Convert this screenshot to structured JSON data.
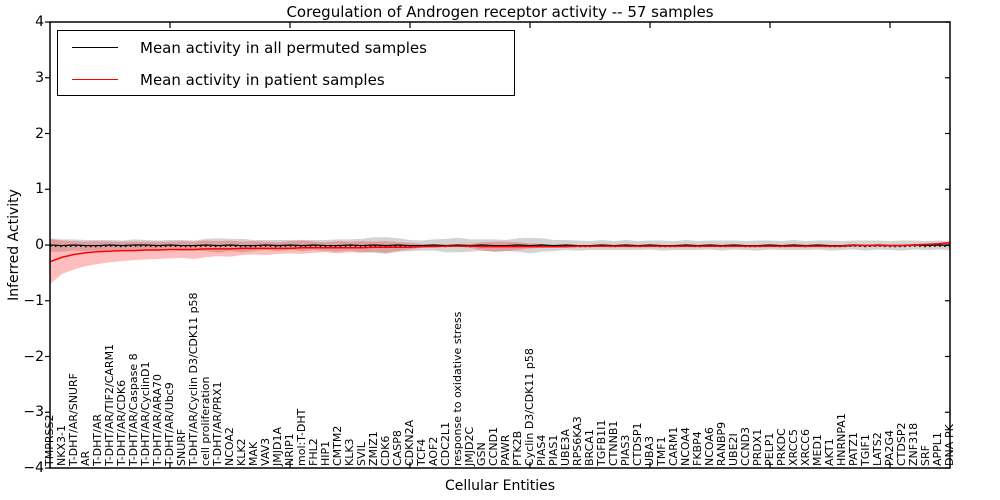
{
  "chart_data": {
    "type": "line",
    "title": "Coregulation of Androgen receptor activity -- 57 samples",
    "xlabel": "Cellular Entities",
    "ylabel": "Inferred Activity",
    "ylim": [
      -4,
      4
    ],
    "yticks": [
      "4",
      "3",
      "2",
      "1",
      "0",
      "−1",
      "−2",
      "−3",
      "−4"
    ],
    "ytick_values": [
      4,
      3,
      2,
      1,
      0,
      -1,
      -2,
      -3,
      -4
    ],
    "xtick_every": 10,
    "legend_position": "upper-left",
    "grid": false,
    "categories": [
      "TMPRSS2",
      "NKX3-1",
      "T-DHT/AR/SNURF",
      "AR",
      "T-DHT/AR",
      "T-DHT/AR/TIF2/CARM1",
      "T-DHT/AR/CDK6",
      "T-DHT/AR/Caspase 8",
      "T-DHT/AR/CyclinD1",
      "T-DHT/AR/ARA70",
      "T-DHT/AR/Ubc9",
      "SNURF",
      "T-DHT/AR/Cyclin D3/CDK11 p58",
      "cell proliferation",
      "T-DHT/AR/PRX1",
      "NCOA2",
      "KLK2",
      "MAK",
      "VAV3",
      "JMJD1A",
      "NRIP1",
      "mol:T-DHT",
      "FHL2",
      "HIP1",
      "CMTM2",
      "KLK3",
      "SVIL",
      "ZMIZ1",
      "CDK6",
      "CASP8",
      "CDKN2A",
      "TCF4",
      "AOF2",
      "CDC2L1",
      "response to oxidative stress",
      "JMJD2C",
      "GSN",
      "CCND1",
      "PAWR",
      "PTK2B",
      "Cyclin D3/CDK11 p58",
      "PIAS4",
      "PIAS1",
      "UBE3A",
      "RPS6KA3",
      "BRCA1",
      "TGFB1I1",
      "CTNNB1",
      "PIAS3",
      "CTDSP1",
      "UBA3",
      "TMF1",
      "CARM1",
      "NCOA4",
      "FKBP4",
      "NCOA6",
      "RANBP9",
      "UBE2I",
      "CCND3",
      "PRDX1",
      "PELP1",
      "PRKDC",
      "XRCC5",
      "XRCC6",
      "MED1",
      "AKT1",
      "HNRNPA1",
      "PATZ1",
      "TGIF1",
      "LATS2",
      "PA2G4",
      "CTDSP2",
      "ZNF318",
      "SRF",
      "APPL1",
      "DNA-PK"
    ],
    "series": [
      {
        "name": "Mean activity in all permuted samples",
        "color": "#000000",
        "values": [
          0.0,
          -0.01,
          0.0,
          -0.01,
          -0.01,
          0.0,
          -0.01,
          0.0,
          0.0,
          -0.01,
          0.0,
          -0.01,
          -0.01,
          0.0,
          -0.01,
          0.0,
          -0.01,
          -0.01,
          0.0,
          -0.01,
          0.0,
          -0.01,
          0.0,
          -0.01,
          -0.01,
          0.0,
          -0.01,
          0.0,
          -0.01,
          0.0,
          -0.01,
          -0.01,
          0.0,
          -0.01,
          0.0,
          -0.01,
          0.0,
          -0.01,
          -0.01,
          0.0,
          -0.01,
          0.0,
          -0.01,
          0.0,
          -0.01,
          -0.01,
          0.0,
          -0.01,
          0.0,
          -0.01,
          0.0,
          -0.01,
          -0.01,
          0.0,
          -0.01,
          0.0,
          -0.01,
          0.0,
          -0.01,
          -0.01,
          0.0,
          -0.01,
          0.0,
          -0.01,
          0.0,
          -0.01,
          -0.01,
          0.0,
          -0.01,
          0.0,
          -0.01,
          -0.01,
          0.0,
          -0.01,
          0.0,
          -0.01
        ],
        "band_color": "rgba(110,110,110,0.30)",
        "band_half_width": [
          0.12,
          0.11,
          0.1,
          0.1,
          0.1,
          0.09,
          0.09,
          0.1,
          0.09,
          0.09,
          0.09,
          0.1,
          0.09,
          0.11,
          0.13,
          0.11,
          0.12,
          0.1,
          0.09,
          0.1,
          0.09,
          0.1,
          0.09,
          0.1,
          0.11,
          0.1,
          0.12,
          0.14,
          0.15,
          0.12,
          0.1,
          0.09,
          0.1,
          0.12,
          0.13,
          0.11,
          0.1,
          0.11,
          0.1,
          0.12,
          0.14,
          0.12,
          0.1,
          0.09,
          0.09,
          0.08,
          0.09,
          0.08,
          0.09,
          0.08,
          0.08,
          0.09,
          0.08,
          0.09,
          0.08,
          0.08,
          0.09,
          0.08,
          0.08,
          0.09,
          0.08,
          0.08,
          0.09,
          0.08,
          0.08,
          0.09,
          0.08,
          0.08,
          0.09,
          0.08,
          0.08,
          0.09,
          0.08,
          0.08,
          0.08,
          0.08
        ]
      },
      {
        "name": "Mean activity in patient samples",
        "color": "#ff0000",
        "values": [
          -0.3,
          -0.22,
          -0.17,
          -0.14,
          -0.12,
          -0.11,
          -0.1,
          -0.1,
          -0.09,
          -0.09,
          -0.08,
          -0.08,
          -0.08,
          -0.07,
          -0.07,
          -0.07,
          -0.06,
          -0.06,
          -0.06,
          -0.06,
          -0.06,
          -0.05,
          -0.05,
          -0.05,
          -0.05,
          -0.05,
          -0.05,
          -0.04,
          -0.04,
          -0.04,
          -0.04,
          -0.03,
          -0.03,
          -0.02,
          -0.02,
          -0.02,
          -0.03,
          -0.03,
          -0.03,
          -0.03,
          -0.03,
          -0.03,
          -0.03,
          -0.03,
          -0.02,
          -0.02,
          -0.02,
          -0.02,
          -0.02,
          -0.02,
          -0.02,
          -0.02,
          -0.02,
          -0.02,
          -0.02,
          -0.02,
          -0.02,
          -0.02,
          -0.02,
          -0.02,
          -0.02,
          -0.02,
          -0.02,
          -0.02,
          -0.02,
          -0.02,
          -0.02,
          -0.01,
          -0.01,
          -0.01,
          -0.01,
          -0.01,
          0.0,
          0.01,
          0.02,
          0.04
        ],
        "band_color": "rgba(255,40,40,0.30)",
        "band_lo": [
          -0.7,
          -0.52,
          -0.44,
          -0.38,
          -0.34,
          -0.31,
          -0.29,
          -0.27,
          -0.26,
          -0.25,
          -0.24,
          -0.23,
          -0.25,
          -0.22,
          -0.2,
          -0.21,
          -0.18,
          -0.17,
          -0.18,
          -0.16,
          -0.15,
          -0.16,
          -0.14,
          -0.13,
          -0.15,
          -0.13,
          -0.14,
          -0.12,
          -0.14,
          -0.11,
          -0.08,
          -0.05,
          -0.03,
          -0.03,
          -0.03,
          -0.05,
          -0.1,
          -0.12,
          -0.11,
          -0.09,
          -0.06,
          -0.05,
          -0.05,
          -0.05,
          -0.04,
          -0.04,
          -0.04,
          -0.04,
          -0.04,
          -0.04,
          -0.04,
          -0.04,
          -0.04,
          -0.04,
          -0.04,
          -0.04,
          -0.04,
          -0.04,
          -0.04,
          -0.04,
          -0.04,
          -0.04,
          -0.04,
          -0.04,
          -0.04,
          -0.04,
          -0.04,
          -0.03,
          -0.03,
          -0.03,
          -0.03,
          -0.03,
          -0.02,
          -0.01,
          0.0,
          0.02
        ],
        "band_hi": [
          0.1,
          0.08,
          0.07,
          0.06,
          0.07,
          0.06,
          0.06,
          0.06,
          0.06,
          0.06,
          0.06,
          0.07,
          0.06,
          0.08,
          0.07,
          0.08,
          0.06,
          0.07,
          0.06,
          0.05,
          0.07,
          0.08,
          0.06,
          0.05,
          0.07,
          0.06,
          0.07,
          0.06,
          0.07,
          0.05,
          0.04,
          0.02,
          0.01,
          0.01,
          0.01,
          0.02,
          0.05,
          0.06,
          0.06,
          0.05,
          0.03,
          0.02,
          -0.01,
          -0.01,
          0.0,
          0.0,
          0.0,
          0.0,
          0.0,
          0.0,
          0.0,
          0.0,
          0.0,
          0.0,
          0.0,
          0.0,
          0.0,
          0.0,
          0.0,
          0.0,
          0.0,
          0.0,
          0.0,
          0.0,
          0.0,
          0.0,
          0.0,
          0.01,
          0.01,
          0.01,
          0.01,
          0.01,
          0.02,
          0.03,
          0.04,
          0.06
        ]
      }
    ]
  }
}
